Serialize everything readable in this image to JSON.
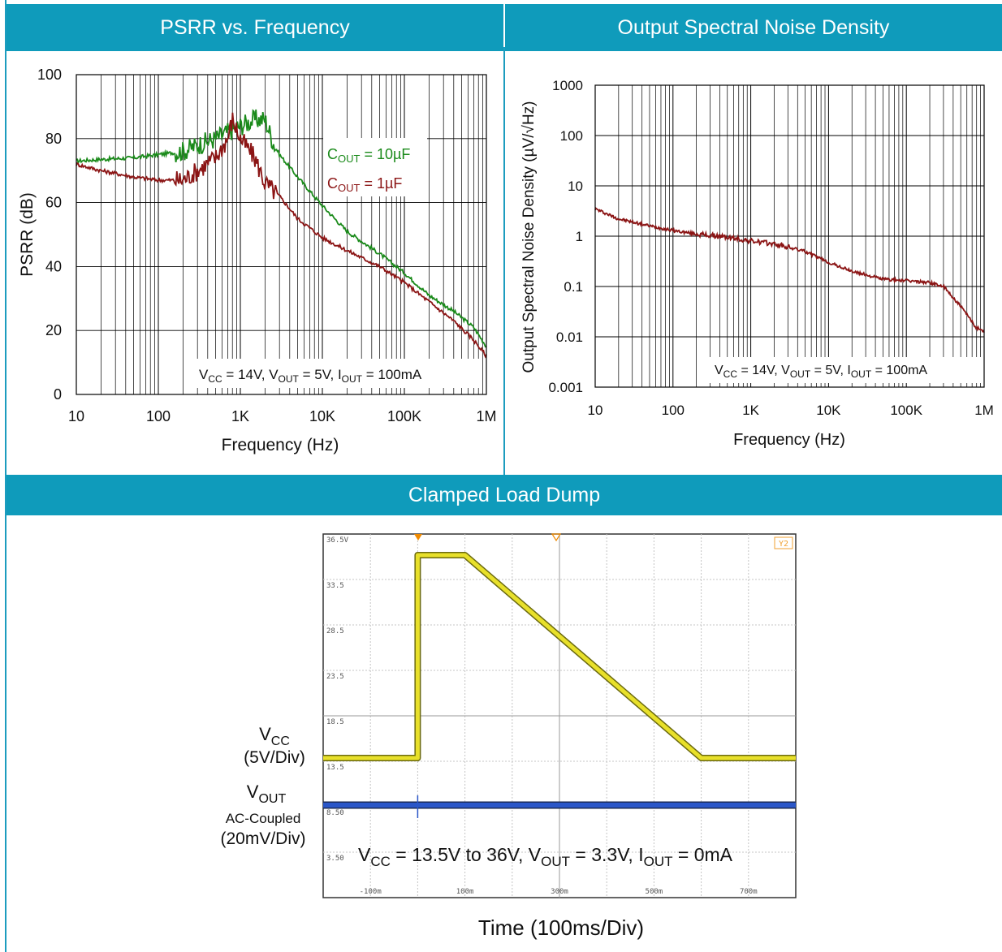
{
  "panels": {
    "psrr_title": "PSRR vs. Frequency",
    "noise_title": "Output Spectral Noise Density",
    "dump_title": "Clamped Load Dump"
  },
  "colors": {
    "header": "#0f9bbb",
    "green": "#1a8a1a",
    "darkred": "#8b1414",
    "scope_yellow": "#e8e02a",
    "scope_blue": "#2a56c8"
  },
  "chart_data": [
    {
      "type": "line",
      "title": "PSRR vs. Frequency",
      "xlabel": "Frequency (Hz)",
      "ylabel": "PSRR (dB)",
      "xscale": "log",
      "xlim": [
        10,
        1000000
      ],
      "ylim": [
        0,
        100
      ],
      "xticks": [
        "10",
        "100",
        "1K",
        "10K",
        "100K",
        "1M"
      ],
      "yticks": [
        "0",
        "20",
        "40",
        "60",
        "80",
        "100"
      ],
      "grid": true,
      "annotation": {
        "vcc": "V",
        "vcc_sub": "CC",
        "vcc_val": " = 14V, V",
        "vout_sub": "OUT",
        "vout_val": " = 5V, I",
        "iout_sub": "OUT",
        "iout_val": " = 100mA"
      },
      "series": [
        {
          "name": "COUT = 10µF",
          "label_main": "C",
          "label_sub": "OUT",
          "label_val": " = 10µF",
          "color": "#1a8a1a",
          "x": [
            10,
            20,
            50,
            100,
            200,
            300,
            500,
            700,
            1000,
            1500,
            2000,
            2500,
            3000,
            5000,
            10000,
            20000,
            50000,
            100000,
            200000,
            400000,
            700000,
            1000000
          ],
          "y": [
            73,
            73.5,
            74,
            75,
            76,
            78,
            80,
            82,
            84,
            86,
            86,
            79,
            75,
            68,
            59,
            51,
            44,
            38,
            31,
            26,
            21,
            15
          ]
        },
        {
          "name": "COUT = 1µF",
          "label_main": "C",
          "label_sub": "OUT",
          "label_val": " = 1µF",
          "color": "#8b1414",
          "x": [
            10,
            20,
            50,
            100,
            200,
            300,
            500,
            700,
            800,
            1000,
            1500,
            2000,
            3000,
            5000,
            10000,
            20000,
            50000,
            100000,
            200000,
            400000,
            700000,
            1000000
          ],
          "y": [
            72,
            70,
            68,
            67,
            67,
            70,
            74,
            80,
            86,
            80,
            74,
            66,
            62,
            55,
            49,
            45,
            40,
            35,
            29,
            23,
            17,
            12
          ]
        }
      ]
    },
    {
      "type": "line",
      "title": "Output Spectral Noise Density",
      "xlabel": "Frequency (Hz)",
      "ylabel": "Output Spectral Noise Density (µV/√Hz)",
      "xscale": "log",
      "yscale": "log",
      "xlim": [
        10,
        1000000
      ],
      "ylim": [
        0.001,
        1000
      ],
      "xticks": [
        "10",
        "100",
        "1K",
        "10K",
        "100K",
        "1M"
      ],
      "yticks": [
        "0.001",
        "0.01",
        "0.1",
        "1",
        "10",
        "100",
        "1000"
      ],
      "grid": true,
      "annotation": {
        "vcc": "V",
        "vcc_sub": "CC",
        "vcc_val": " = 14V, V",
        "vout_sub": "OUT",
        "vout_val": " = 5V, I",
        "iout_sub": "OUT",
        "iout_val": " = 100mA"
      },
      "series": [
        {
          "color": "#8b1414",
          "x": [
            10,
            20,
            50,
            100,
            200,
            500,
            1000,
            2000,
            5000,
            10000,
            20000,
            50000,
            100000,
            200000,
            300000,
            500000,
            800000,
            1000000
          ],
          "y": [
            3.5,
            2.2,
            1.6,
            1.3,
            1.1,
            0.95,
            0.8,
            0.7,
            0.5,
            0.3,
            0.2,
            0.14,
            0.13,
            0.12,
            0.1,
            0.04,
            0.015,
            0.013
          ]
        }
      ]
    },
    {
      "type": "line",
      "title": "Clamped Load Dump",
      "xlabel": "Time (100ms/Div)",
      "scope_ylabels": [
        "36.5V",
        "33.5",
        "28.5",
        "23.5",
        "18.5",
        "13.5",
        "8.50",
        "3.50"
      ],
      "scope_xlabels": [
        "-100m",
        "100m",
        "300m",
        "500m",
        "700m"
      ],
      "y2_marker": "Y2",
      "annotation": {
        "vcc": "V",
        "vcc_sub": "CC",
        "vcc_val": " = 13.5V to 36V, V",
        "vout_sub": "OUT",
        "vout_val": " = 3.3V, I",
        "iout_sub": "OUT",
        "iout_val": " = 0mA"
      },
      "channel_labels": {
        "vcc": "V",
        "vcc_sub": "CC",
        "vcc_scale": "(5V/Div)",
        "vout": "V",
        "vout_sub": "OUT",
        "vout_coupling": "AC-Coupled",
        "vout_scale": "(20mV/Div)"
      },
      "series": [
        {
          "name": "VCC",
          "color": "#e8e02a",
          "time_ms": [
            -200,
            0,
            0,
            100,
            600,
            800
          ],
          "volts": [
            13.5,
            13.5,
            36,
            36,
            13.5,
            13.5
          ]
        },
        {
          "name": "VOUT",
          "color": "#2a56c8",
          "time_ms": [
            -200,
            800
          ],
          "volts": [
            3.3,
            3.3
          ]
        }
      ]
    }
  ]
}
